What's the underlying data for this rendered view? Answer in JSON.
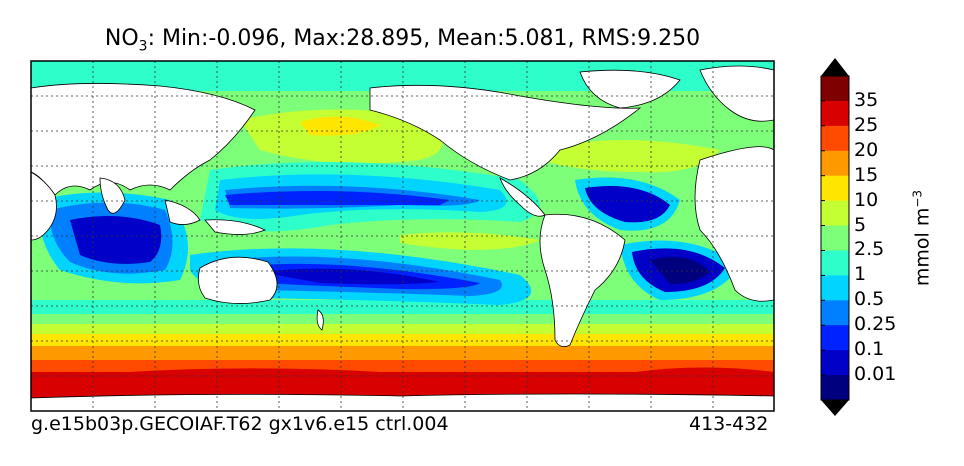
{
  "title": {
    "species": "NO",
    "subscript": "3",
    "stats": ": Min:-0.096, Max:28.895, Mean:5.081, RMS:9.250"
  },
  "footer": {
    "case_name": "g.e15b03p.GECOIAF.T62 gx1v6.e15 ctrl.004",
    "years": "413-432"
  },
  "colorbar": {
    "units_main": "mmol m",
    "units_exp": "−3",
    "labels": [
      "0.01",
      "0.1",
      "0.25",
      "0.5",
      "1",
      "2.5",
      "5",
      "10",
      "15",
      "20",
      "25",
      "35"
    ],
    "colors": [
      "#00007f",
      "#0000c8",
      "#0022ff",
      "#0080ff",
      "#00d4ff",
      "#2effca",
      "#7dff7a",
      "#c4ff33",
      "#ffe600",
      "#ff9900",
      "#ff4a00",
      "#d80000",
      "#7f0000"
    ],
    "extend_colors": {
      "low": "#000000",
      "high": "#000000"
    }
  },
  "map": {
    "land_color": "#ffffff",
    "gridlines": "dotted"
  }
}
